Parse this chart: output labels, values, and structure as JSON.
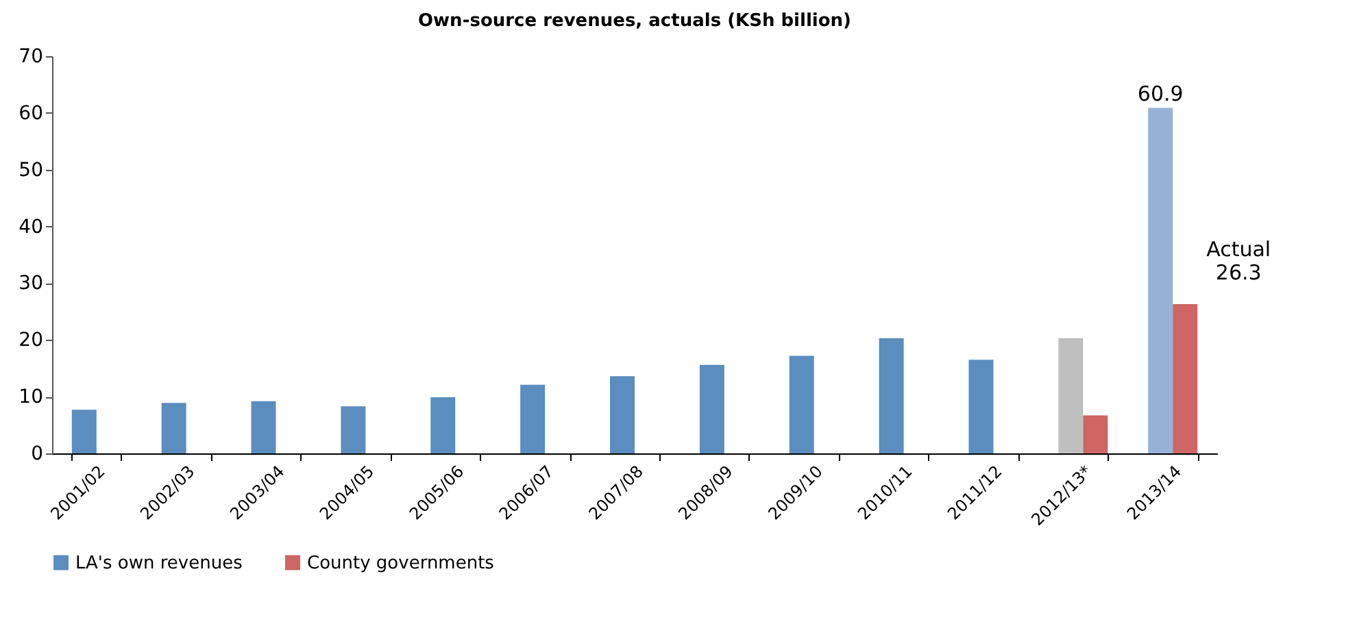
{
  "chart_data": {
    "type": "bar",
    "title": "Own-source revenues, actuals (KSh billion)",
    "categories": [
      "2001/02",
      "2002/03",
      "2003/04",
      "2004/05",
      "2005/06",
      "2006/07",
      "2007/08",
      "2008/09",
      "2009/10",
      "2010/11",
      "2011/12",
      "2012/13*",
      "2013/14"
    ],
    "series": [
      {
        "name": "LA's own revenues",
        "color": "#5b8dbe",
        "colors": [
          "#5b8dbe",
          "#5b8dbe",
          "#5b8dbe",
          "#5b8dbe",
          "#5b8dbe",
          "#5b8dbe",
          "#5b8dbe",
          "#5b8dbe",
          "#5b8dbe",
          "#5b8dbe",
          "#5b8dbe",
          "#bfbfbf",
          "#95b3d7"
        ],
        "values": [
          7.7,
          8.9,
          9.2,
          8.3,
          9.9,
          12.1,
          13.6,
          15.6,
          17.2,
          20.3,
          16.5,
          20.3,
          60.9
        ],
        "value_labels": [
          null,
          null,
          null,
          null,
          null,
          null,
          null,
          null,
          null,
          null,
          null,
          null,
          "60.9"
        ]
      },
      {
        "name": "County governments",
        "color": "#cd6664",
        "values": [
          null,
          null,
          null,
          null,
          null,
          null,
          null,
          null,
          null,
          null,
          null,
          6.7,
          26.3
        ]
      }
    ],
    "annotations": [
      {
        "text": "Actual 26.3",
        "x": "2013/14",
        "y": 26.3
      }
    ],
    "ylim": [
      0,
      70
    ],
    "yticks": [
      0,
      10,
      20,
      30,
      40,
      50,
      60,
      70
    ],
    "grid": false,
    "legend": "bottom"
  }
}
